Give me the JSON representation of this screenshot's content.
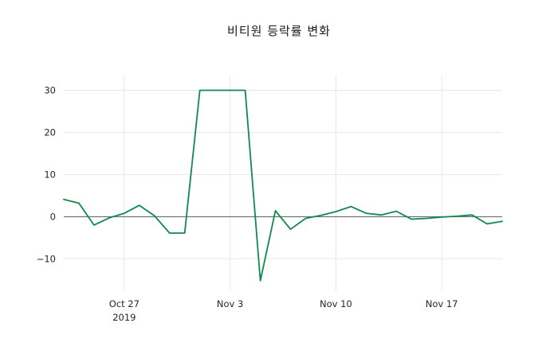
{
  "chart_data": {
    "type": "line",
    "title": "비티원 등락률 변화",
    "xlabel": "",
    "ylabel": "",
    "grid": true,
    "legend": "none",
    "line_color": "#0e8a4e",
    "zero_line_color": "#555555",
    "grid_color": "#e7e7e7",
    "ylim": [
      -17.5,
      33.5
    ],
    "yticks": [
      {
        "value": 30,
        "label": "30"
      },
      {
        "value": 20,
        "label": "20"
      },
      {
        "value": 10,
        "label": "10"
      },
      {
        "value": 0,
        "label": "0"
      },
      {
        "value": -10,
        "label": "−10"
      }
    ],
    "xticks": [
      {
        "index": 4,
        "label": "Oct 27",
        "sublabel": "2019"
      },
      {
        "index": 11,
        "label": "Nov 3",
        "sublabel": ""
      },
      {
        "index": 18,
        "label": "Nov 10",
        "sublabel": ""
      },
      {
        "index": 25,
        "label": "Nov 17",
        "sublabel": ""
      }
    ],
    "x": [
      "2019-10-23",
      "2019-10-24",
      "2019-10-25",
      "2019-10-26",
      "2019-10-27",
      "2019-10-28",
      "2019-10-29",
      "2019-10-30",
      "2019-10-31",
      "2019-11-01",
      "2019-11-02",
      "2019-11-03",
      "2019-11-04",
      "2019-11-05",
      "2019-11-06",
      "2019-11-07",
      "2019-11-08",
      "2019-11-09",
      "2019-11-10",
      "2019-11-11",
      "2019-11-12",
      "2019-11-13",
      "2019-11-14",
      "2019-11-15",
      "2019-11-16",
      "2019-11-17",
      "2019-11-18",
      "2019-11-19",
      "2019-11-20",
      "2019-11-21"
    ],
    "series": [
      {
        "name": "등락률",
        "values": [
          4.1,
          3.2,
          -2.0,
          -0.3,
          0.8,
          2.7,
          0.2,
          -3.9,
          -3.9,
          30,
          30,
          30,
          30,
          -15.2,
          1.4,
          -3.0,
          -0.4,
          0.3,
          1.2,
          2.4,
          0.8,
          0.4,
          1.3,
          -0.6,
          -0.4,
          -0.1,
          0.1,
          0.4,
          -1.7,
          -1.1
        ]
      }
    ]
  }
}
